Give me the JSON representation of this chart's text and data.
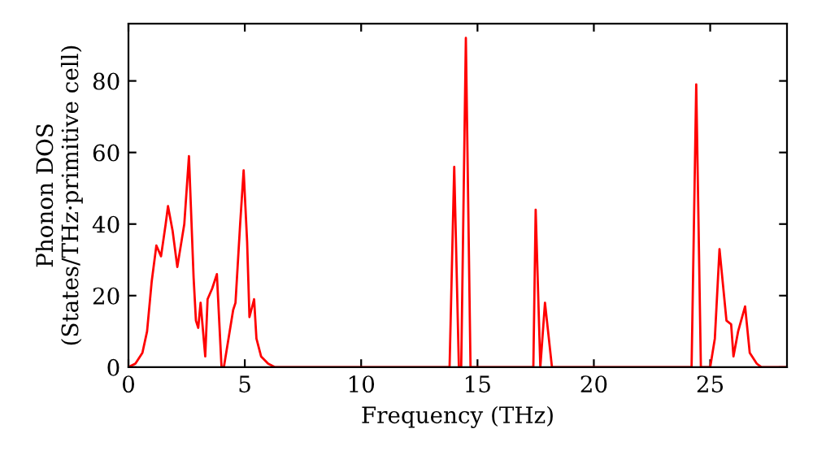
{
  "chart_data": {
    "type": "line",
    "xlabel": "Frequency (THz)",
    "ylabel": "Phonon DOS\n(States/THz·primitive cell)",
    "xlim": [
      0,
      28.3
    ],
    "ylim": [
      0,
      96
    ],
    "xticks": [
      0,
      5,
      10,
      15,
      20,
      25
    ],
    "yticks": [
      0,
      20,
      40,
      60,
      80
    ],
    "grid": false,
    "marker": "none",
    "line_style": "solid",
    "series": [
      {
        "color": "#ff0000",
        "x": [
          0,
          0.3,
          0.6,
          0.8,
          1.0,
          1.2,
          1.4,
          1.6,
          1.7,
          1.9,
          2.1,
          2.3,
          2.4,
          2.6,
          2.8,
          2.9,
          3.0,
          3.1,
          3.3,
          3.4,
          3.6,
          3.8,
          4.0,
          4.1,
          4.3,
          4.5,
          4.6,
          4.8,
          4.95,
          5.1,
          5.2,
          5.4,
          5.5,
          5.7,
          6.0,
          6.3,
          13.8,
          14.0,
          14.2,
          14.3,
          14.5,
          14.7,
          17.4,
          17.5,
          17.7,
          17.9,
          18.2,
          24.2,
          24.4,
          24.6,
          25.0,
          25.2,
          25.4,
          25.7,
          25.9,
          26.0,
          26.2,
          26.5,
          26.7,
          27.0,
          27.2,
          28.3
        ],
        "values": [
          0,
          1,
          4,
          10,
          24,
          34,
          31,
          40,
          45,
          38,
          28,
          36,
          40,
          59,
          25,
          13,
          11,
          18,
          3,
          19,
          22,
          26,
          0,
          0,
          8,
          16,
          18,
          40,
          55,
          35,
          14,
          19,
          8,
          3,
          1,
          0,
          0,
          56,
          0,
          0,
          92,
          0,
          0,
          44,
          0,
          18,
          0,
          0,
          79,
          0,
          0,
          8,
          33,
          13,
          12,
          3,
          10,
          17,
          4,
          1,
          0,
          0
        ]
      }
    ]
  }
}
